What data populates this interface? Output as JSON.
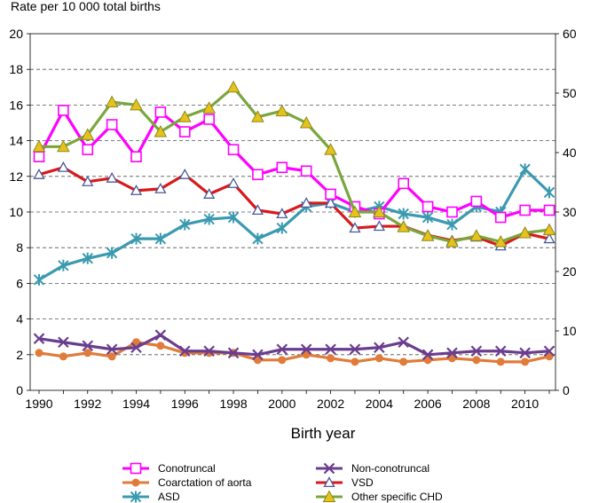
{
  "chart_data": {
    "type": "line",
    "title": "",
    "ylabel": "Rate per 10 000 total births",
    "y2label": "",
    "xlabel": "Birth year",
    "ylim": [
      0,
      20
    ],
    "y2lim": [
      0,
      60
    ],
    "yticks": [
      "0",
      "2",
      "4",
      "6",
      "8",
      "10",
      "12",
      "14",
      "16",
      "18",
      "20"
    ],
    "y2ticks": [
      "0",
      "10",
      "20",
      "30",
      "40",
      "50",
      "60"
    ],
    "xticks": [
      "1990",
      "1992",
      "1994",
      "1996",
      "1998",
      "2000",
      "2002",
      "2004",
      "2006",
      "2008",
      "2010"
    ],
    "x": [
      1990,
      1991,
      1992,
      1993,
      1994,
      1995,
      1996,
      1997,
      1998,
      1999,
      2000,
      2001,
      2002,
      2003,
      2004,
      2005,
      2006,
      2007,
      2008,
      2009,
      2010,
      2011
    ],
    "series": [
      {
        "name": "Coarctation of aorta",
        "axis": "left",
        "color": "#E07B39",
        "marker": "circle",
        "values": [
          2.1,
          1.9,
          2.1,
          1.9,
          2.7,
          2.5,
          2.1,
          2.1,
          2.1,
          1.7,
          1.7,
          2.0,
          1.8,
          1.6,
          1.8,
          1.6,
          1.7,
          1.8,
          1.7,
          1.6,
          1.6,
          1.9
        ]
      },
      {
        "name": "Non-conotruncal",
        "axis": "left",
        "color": "#6A3D8F",
        "marker": "x",
        "values": [
          2.9,
          2.7,
          2.5,
          2.3,
          2.4,
          3.1,
          2.2,
          2.2,
          2.1,
          2.0,
          2.3,
          2.3,
          2.3,
          2.3,
          2.4,
          2.7,
          2.0,
          2.1,
          2.2,
          2.2,
          2.1,
          2.2
        ]
      },
      {
        "name": "ASD",
        "axis": "left",
        "color": "#3A9AB0",
        "marker": "star",
        "values": [
          6.2,
          7.0,
          7.4,
          7.7,
          8.5,
          8.5,
          9.3,
          9.6,
          9.7,
          8.5,
          9.1,
          10.3,
          10.5,
          10.0,
          10.3,
          9.9,
          9.7,
          9.3,
          10.3,
          10.0,
          12.4,
          11.1
        ]
      },
      {
        "name": "VSD",
        "axis": "left",
        "color": "#D7191C",
        "marker": "triangle-open",
        "values": [
          12.1,
          12.5,
          11.7,
          11.9,
          11.2,
          11.3,
          12.1,
          11.0,
          11.6,
          10.1,
          9.9,
          10.5,
          10.5,
          9.1,
          9.2,
          9.2,
          8.7,
          8.4,
          8.6,
          8.1,
          8.8,
          8.5
        ]
      },
      {
        "name": "Conotruncal",
        "axis": "left",
        "color": "#FF00FF",
        "marker": "square-open",
        "values": [
          13.1,
          15.7,
          13.5,
          14.9,
          13.1,
          15.6,
          14.5,
          15.2,
          13.5,
          12.1,
          12.5,
          12.3,
          11.0,
          10.3,
          9.9,
          11.6,
          10.3,
          10.0,
          10.6,
          9.7,
          10.1,
          10.1
        ]
      },
      {
        "name": "Other specific CHD",
        "axis": "right",
        "color": "#7AA63E",
        "marker": "triangle-filled",
        "values": [
          41,
          41,
          43,
          48.5,
          48,
          43.5,
          46,
          47.5,
          51,
          46,
          47,
          45,
          40.5,
          30,
          30,
          27.5,
          26,
          25,
          26,
          25,
          26.5,
          27
        ]
      }
    ],
    "legend": [
      {
        "name": "Conotruncal",
        "series": 4
      },
      {
        "name": "Non-conotruncal",
        "series": 1
      },
      {
        "name": "Coarctation of aorta",
        "series": 0
      },
      {
        "name": "VSD",
        "series": 3
      },
      {
        "name": "ASD",
        "series": 2
      },
      {
        "name": "Other specific CHD",
        "series": 5
      }
    ]
  }
}
